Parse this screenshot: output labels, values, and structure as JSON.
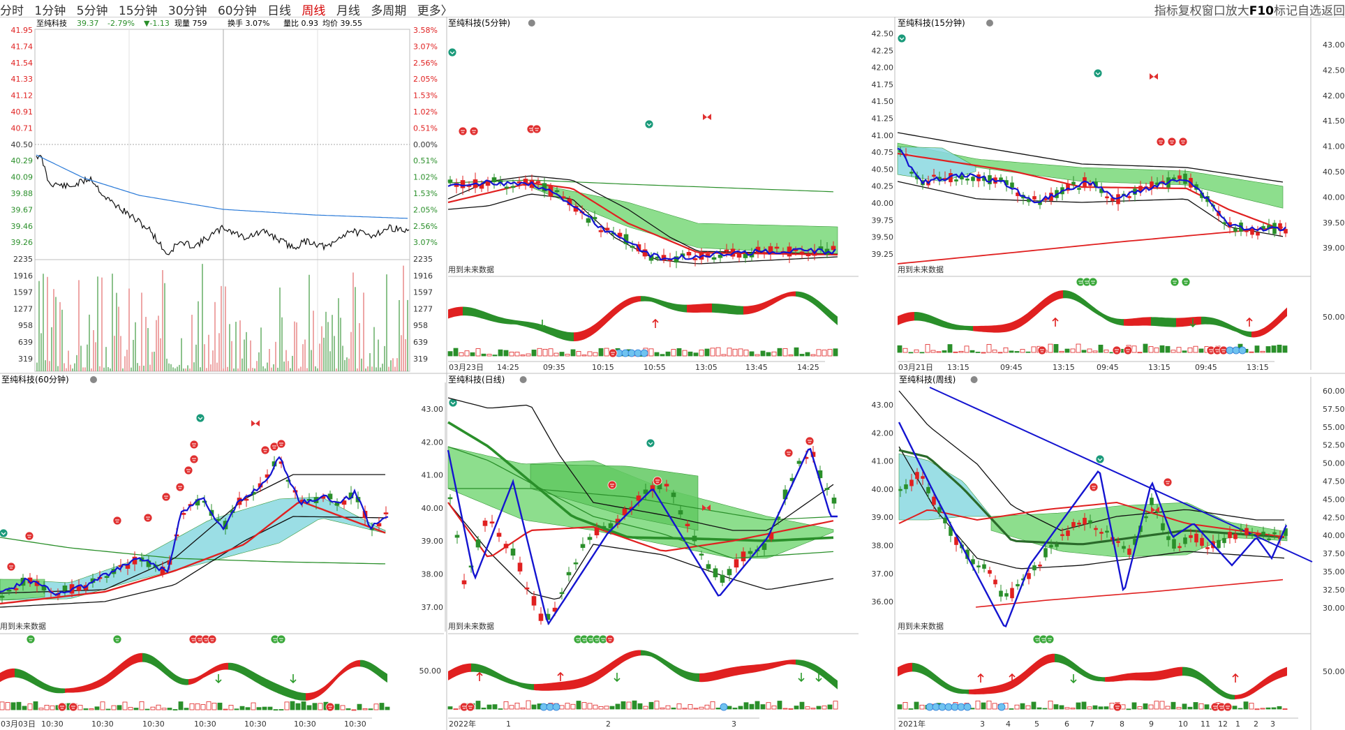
{
  "toolbar": {
    "periods": [
      "分时",
      "1分钟",
      "5分钟",
      "15分钟",
      "30分钟",
      "60分钟",
      "日线",
      "周线",
      "月线",
      "多周期",
      "更多〉"
    ],
    "active_period": "周线",
    "right_items": [
      "指标",
      "复权",
      "窗口",
      "放大",
      "F10",
      "标记",
      "自选",
      "返回"
    ]
  },
  "colors": {
    "up": "#e02020",
    "down": "#2a8f2a",
    "avg_line": "#2a7ad8",
    "band_green": "#79d879",
    "band_cyan": "#8ad8e0",
    "trend": "#1414d0"
  },
  "intraday": {
    "header": {
      "name": "至纯科技",
      "price": "39.37",
      "change_pct": "-2.79%",
      "change": "▼-1.13",
      "volume_label": "现量 759",
      "turnover_label": "换手 3.07%",
      "ratio_label": "量比 0.93",
      "avg_label": "均价 39.55"
    },
    "price_ticks": [
      "41.95",
      "41.74",
      "41.54",
      "41.33",
      "41.12",
      "40.91",
      "40.71",
      "40.50",
      "40.29",
      "40.09",
      "39.88",
      "39.67",
      "39.46",
      "39.26"
    ],
    "pct_ticks": [
      "3.58%",
      "3.07%",
      "2.56%",
      "2.05%",
      "1.53%",
      "1.02%",
      "0.51%",
      "0.00%",
      "0.51%",
      "1.02%",
      "1.53%",
      "2.05%",
      "2.56%",
      "3.07%"
    ],
    "vol_ticks": [
      "2235",
      "1916",
      "1597",
      "1277",
      "958",
      "639",
      "319"
    ]
  },
  "panels": {
    "p5": {
      "title": "至纯科技(5分钟)",
      "note": "用到未来数据",
      "xticks": [
        "03月23日",
        "14:25",
        "09:35",
        "10:15",
        "10:55",
        "13:05",
        "13:45",
        "14:25"
      ]
    },
    "p15": {
      "title": "至纯科技(15分钟)",
      "note": "用到未来数据",
      "yticks_left": [
        "42.50",
        "42.25",
        "42.00",
        "41.75",
        "41.50",
        "41.25",
        "41.00",
        "40.75",
        "40.50",
        "40.25",
        "40.00",
        "39.75",
        "39.50",
        "39.25"
      ],
      "yticks_right": [
        "43.00",
        "42.50",
        "42.00",
        "41.50",
        "41.00",
        "40.50",
        "40.00",
        "39.50",
        "39.00"
      ],
      "osc_tick": "50.00",
      "xticks": [
        "03月21日",
        "13:15",
        "09:45",
        "13:15",
        "09:45",
        "13:15",
        "09:45",
        "13:15"
      ]
    },
    "p60": {
      "title": "至纯科技(60分钟)",
      "note": "用到未来数据",
      "xticks": [
        "03月03日",
        "10:30",
        "10:30",
        "10:30",
        "10:30",
        "10:30",
        "10:30",
        "10:30"
      ]
    },
    "pday": {
      "title": "至纯科技(日线)",
      "note": "用到未来数据",
      "yticks": [
        "43.00",
        "42.00",
        "41.00",
        "40.00",
        "39.00",
        "38.00",
        "37.00"
      ],
      "osc_tick": "50.00",
      "xticks": [
        "2022年",
        "1",
        "2",
        "3"
      ]
    },
    "pweek": {
      "title": "至纯科技(周线)",
      "note": "用到未来数据",
      "yticks_left": [
        "43.00",
        "42.00",
        "41.00",
        "40.00",
        "39.00",
        "38.00",
        "37.00",
        "36.00"
      ],
      "yticks_right": [
        "60.00",
        "57.50",
        "55.00",
        "52.50",
        "50.00",
        "47.50",
        "45.00",
        "42.50",
        "40.00",
        "37.50",
        "35.00",
        "32.50",
        "30.00"
      ],
      "osc_tick": "50.00",
      "xticks": [
        "2021年",
        "3",
        "4",
        "5",
        "6",
        "7",
        "8",
        "9",
        "10",
        "11",
        "12",
        "1",
        "2",
        "3"
      ]
    }
  }
}
